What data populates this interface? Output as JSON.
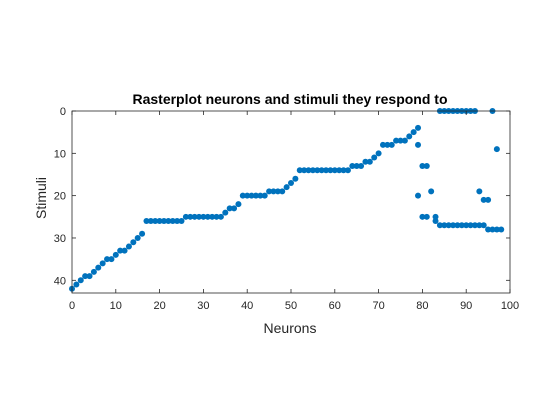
{
  "chart_data": {
    "type": "scatter",
    "title": "Rasterplot neurons and stimuli they respond to",
    "xlabel": "Neurons",
    "ylabel": "Stimuli",
    "xlim": [
      0,
      100
    ],
    "ylim": [
      0,
      43
    ],
    "y_reversed": true,
    "grid": false,
    "legend": "none",
    "xticks": [
      0,
      10,
      20,
      30,
      40,
      50,
      60,
      70,
      80,
      90,
      100
    ],
    "yticks": [
      0,
      10,
      20,
      30,
      40
    ],
    "marker_color": "#0072BD",
    "axis_color": "#262626",
    "series": [
      {
        "x": [
          0,
          1,
          2,
          3,
          4,
          5,
          6,
          7,
          8,
          9,
          10,
          11,
          12,
          13,
          14,
          15,
          16,
          17,
          18,
          19,
          20,
          21,
          22,
          23,
          24,
          25,
          26,
          27,
          28,
          29,
          30,
          31,
          32,
          33,
          34,
          35,
          36,
          37,
          38,
          39,
          40,
          41,
          42,
          43,
          44,
          45,
          46,
          47,
          48,
          49,
          50,
          51,
          52,
          53,
          54,
          55,
          56,
          57,
          58,
          59,
          60,
          61,
          62,
          63,
          64,
          65,
          66,
          67,
          68,
          69,
          70,
          71,
          72,
          73,
          74,
          75,
          76,
          77,
          78,
          79,
          79,
          79,
          80,
          80,
          81,
          81,
          82,
          83,
          83,
          84,
          84,
          85,
          86,
          87,
          88,
          89,
          90,
          91,
          92,
          93,
          94,
          95,
          96,
          97,
          98,
          85,
          86,
          87,
          88,
          89,
          90,
          91,
          92,
          93,
          94,
          95,
          96,
          97
        ],
        "y": [
          42,
          41,
          40,
          39,
          39,
          38,
          37,
          36,
          35,
          35,
          34,
          33,
          33,
          32,
          31,
          30,
          29,
          26,
          26,
          26,
          26,
          26,
          26,
          26,
          26,
          26,
          25,
          25,
          25,
          25,
          25,
          25,
          25,
          25,
          25,
          24,
          23,
          23,
          22,
          20,
          20,
          20,
          20,
          20,
          20,
          19,
          19,
          19,
          19,
          18,
          17,
          16,
          14,
          14,
          14,
          14,
          14,
          14,
          14,
          14,
          14,
          14,
          14,
          14,
          13,
          13,
          13,
          12,
          12,
          11,
          10,
          8,
          8,
          8,
          7,
          7,
          7,
          6,
          5,
          4,
          8,
          20,
          25,
          13,
          25,
          13,
          19,
          25,
          26,
          27,
          0,
          27,
          27,
          27,
          27,
          27,
          27,
          27,
          27,
          27,
          27,
          28,
          28,
          28,
          28,
          0,
          0,
          0,
          0,
          0,
          0,
          0,
          0,
          19,
          21,
          21,
          0,
          9
        ]
      }
    ]
  }
}
